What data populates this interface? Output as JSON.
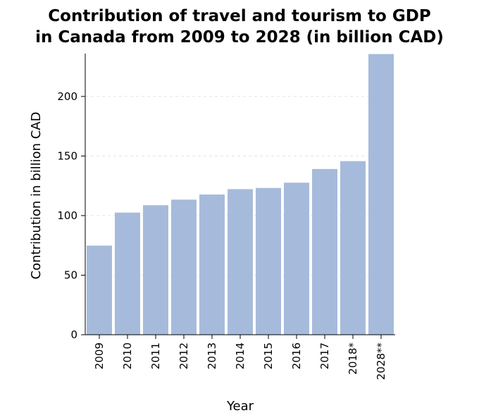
{
  "chart_data": {
    "type": "bar",
    "title_lines": [
      "Contribution of travel and tourism to GDP",
      "in Canada from 2009 to 2028 (in billion CAD)"
    ],
    "xlabel": "Year",
    "ylabel": "Contribution in billion CAD",
    "categories": [
      "2009",
      "2010",
      "2011",
      "2012",
      "2013",
      "2014",
      "2015",
      "2016",
      "2017",
      "2018*",
      "2028**"
    ],
    "values": [
      74.8,
      102.5,
      108.7,
      113.4,
      117.7,
      122.2,
      123.2,
      127.6,
      139.1,
      145.7,
      235.6
    ],
    "yticks": [
      0,
      50,
      100,
      150,
      200
    ],
    "ylim": [
      0,
      236
    ],
    "grid": true,
    "bar_color": "#a6bbdb"
  }
}
